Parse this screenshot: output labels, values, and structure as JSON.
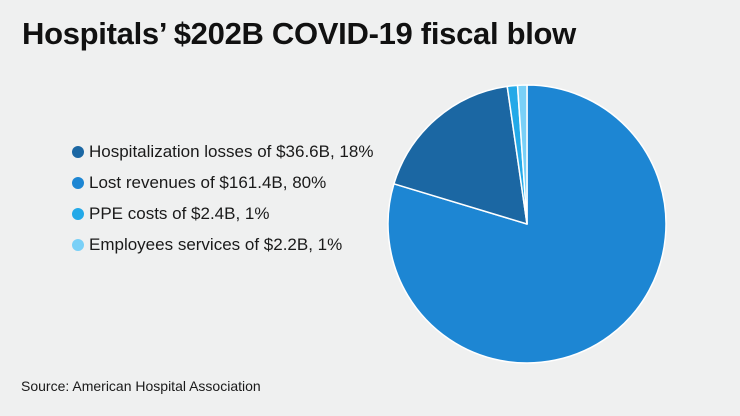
{
  "chart_data": {
    "type": "pie",
    "title": "Hospitals’ $202B COVID-19 fiscal blow",
    "source": "Source: American Hospital Association",
    "legend_position": "left",
    "slices": [
      {
        "name": "Hospitalization losses",
        "label": "Hospitalization losses of $36.6B, 18%",
        "value": 36.6,
        "percent": 18,
        "color": "#1b67a3"
      },
      {
        "name": "PPE costs",
        "label": "PPE costs of $2.4B, 1%",
        "value": 2.4,
        "percent": 1,
        "color": "#23a9e8"
      },
      {
        "name": "Employees services",
        "label": "Employees services of $2.2B, 1%",
        "value": 2.2,
        "percent": 1,
        "color": "#79d0f7"
      },
      {
        "name": "Lost revenues",
        "label": "Lost revenues of $161.4B, 80%",
        "value": 161.4,
        "percent": 80,
        "color": "#1d86d3"
      }
    ],
    "legend_order": [
      0,
      3,
      1,
      2
    ]
  }
}
